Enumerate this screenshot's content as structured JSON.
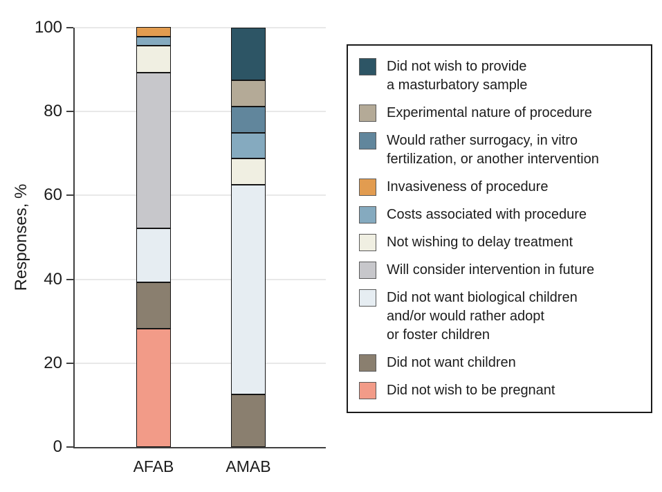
{
  "y_axis": {
    "label": "Responses, %",
    "ticks": [
      0,
      20,
      40,
      60,
      80,
      100
    ]
  },
  "x_axis": {
    "categories": [
      "AFAB",
      "AMAB"
    ]
  },
  "legend": {
    "items": [
      {
        "label": "Did not wish to provide\na masturbatory sample",
        "color": "#2D5565"
      },
      {
        "label": "Experimental nature of procedure",
        "color": "#B4AA97"
      },
      {
        "label": "Would rather surrogacy, in vitro\nfertilization, or another intervention",
        "color": "#61869C"
      },
      {
        "label": "Invasiveness of procedure",
        "color": "#E29C50"
      },
      {
        "label": "Costs associated with procedure",
        "color": "#85AABF"
      },
      {
        "label": "Not wishing to delay treatment",
        "color": "#F0EFE2"
      },
      {
        "label": "Will consider intervention in future",
        "color": "#C7C7CB"
      },
      {
        "label": "Did not want biological children\nand/or would rather adopt\nor foster children",
        "color": "#E6EDF2"
      },
      {
        "label": "Did not want children",
        "color": "#8A7F6F"
      },
      {
        "label": "Did not wish to be pregnant",
        "color": "#F29B88"
      }
    ]
  },
  "chart_data": {
    "type": "bar",
    "stacked": true,
    "stacking_order": "bottom-to-top",
    "categories": [
      "AFAB",
      "AMAB"
    ],
    "title": "",
    "xlabel": "",
    "ylabel": "Responses, %",
    "ylim": [
      0,
      100
    ],
    "grid": "horizontal",
    "legend_position": "right",
    "series": [
      {
        "name": "Did not wish to be pregnant",
        "color": "#F29B88",
        "values": [
          28.3,
          0
        ]
      },
      {
        "name": "Did not want children",
        "color": "#8A7F6F",
        "values": [
          10.9,
          12.5
        ]
      },
      {
        "name": "Did not want biological children and/or would rather adopt or foster children",
        "color": "#E6EDF2",
        "values": [
          13.0,
          50.0
        ]
      },
      {
        "name": "Will consider intervention in future",
        "color": "#C7C7CB",
        "values": [
          37.0,
          0
        ]
      },
      {
        "name": "Not wishing to delay treatment",
        "color": "#F0EFE2",
        "values": [
          6.5,
          6.25
        ]
      },
      {
        "name": "Costs associated with procedure",
        "color": "#85AABF",
        "values": [
          2.2,
          6.25
        ]
      },
      {
        "name": "Invasiveness of procedure",
        "color": "#E29C50",
        "values": [
          2.2,
          0
        ]
      },
      {
        "name": "Would rather surrogacy, in vitro fertilization, or another intervention",
        "color": "#61869C",
        "values": [
          0,
          6.25
        ]
      },
      {
        "name": "Experimental nature of procedure",
        "color": "#B4AA97",
        "values": [
          0,
          6.25
        ]
      },
      {
        "name": "Did not wish to provide a masturbatory sample",
        "color": "#2D5565",
        "values": [
          0,
          12.5
        ]
      }
    ]
  }
}
